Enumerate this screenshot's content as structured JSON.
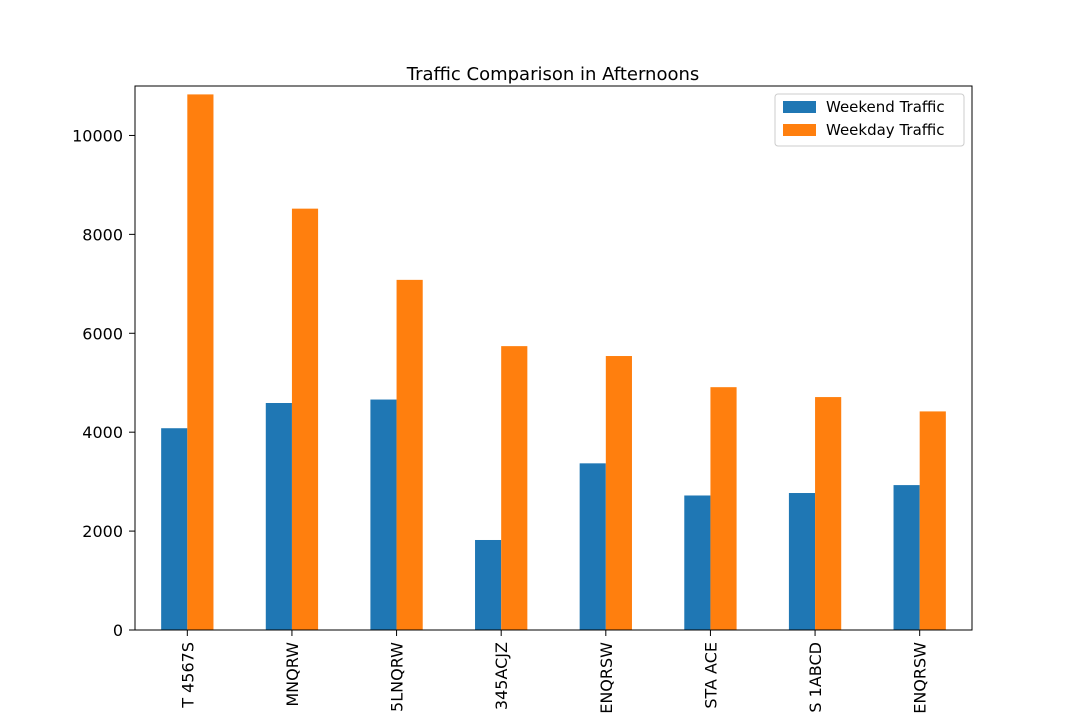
{
  "chart_data": {
    "type": "bar",
    "title": "Traffic Comparison in Afternoons",
    "categories": [
      "T 4567S",
      "MNQRW",
      "5LNQRW",
      "345ACJZ",
      "ENQRSW",
      "STA ACE",
      "S 1ABCD",
      "ENQRSW"
    ],
    "series": [
      {
        "name": "Weekend Traffic",
        "color": "#1f77b4",
        "values": [
          4080,
          4590,
          4660,
          1820,
          3370,
          2720,
          2770,
          2930
        ]
      },
      {
        "name": "Weekday Traffic",
        "color": "#ff7f0e",
        "values": [
          10830,
          8520,
          7080,
          5740,
          5540,
          4910,
          4710,
          4420
        ]
      }
    ],
    "xlabel": "",
    "ylabel": "",
    "ylim": [
      0,
      11000
    ],
    "yticks": [
      0,
      2000,
      4000,
      6000,
      8000,
      10000
    ],
    "grid": false,
    "legend": "top-right",
    "category_label_rotation": "vertical"
  }
}
